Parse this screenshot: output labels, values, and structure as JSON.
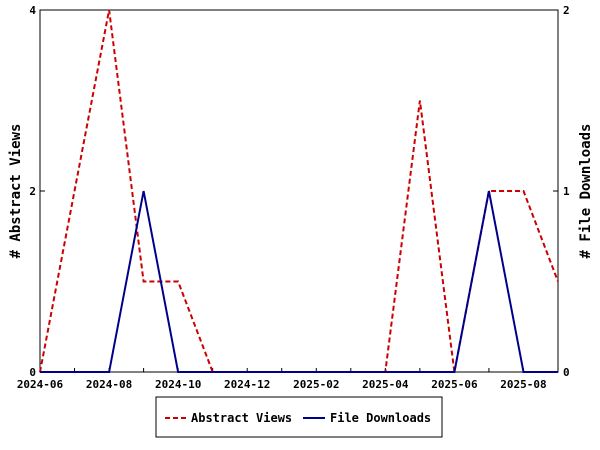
{
  "chart_data": {
    "type": "line",
    "x": [
      "2024-06",
      "2024-07",
      "2024-08",
      "2024-09",
      "2024-10",
      "2024-11",
      "2024-12",
      "2025-01",
      "2025-02",
      "2025-03",
      "2025-04",
      "2025-05",
      "2025-06",
      "2025-07",
      "2025-08",
      "2025-09"
    ],
    "x_tick_labels": [
      "2024-06",
      "2024-08",
      "2024-10",
      "2024-12",
      "2025-02",
      "2025-04",
      "2025-06",
      "2025-08"
    ],
    "series": [
      {
        "name": "Abstract Views",
        "axis": "left",
        "color": "#cc0000",
        "dash": "dashed",
        "values": [
          0,
          2,
          4,
          1,
          1,
          0,
          0,
          0,
          0,
          0,
          0,
          3,
          0,
          2,
          2,
          1
        ]
      },
      {
        "name": "File Downloads",
        "axis": "right",
        "color": "#00008b",
        "dash": "solid",
        "values": [
          0,
          0,
          0,
          1,
          0,
          0,
          0,
          0,
          0,
          0,
          0,
          0,
          0,
          1,
          0,
          0
        ]
      }
    ],
    "ylabel": "# Abstract Views",
    "y2label": "# File Downloads",
    "ylim": [
      0,
      4
    ],
    "y2lim": [
      0,
      2
    ],
    "y_ticks": [
      "0",
      "2",
      "4"
    ],
    "y2_ticks": [
      "0",
      "1",
      "2"
    ],
    "legend_position": "bottom"
  }
}
